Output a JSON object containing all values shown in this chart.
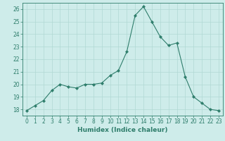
{
  "x": [
    0,
    1,
    2,
    3,
    4,
    5,
    6,
    7,
    8,
    9,
    10,
    11,
    12,
    13,
    14,
    15,
    16,
    17,
    18,
    19,
    20,
    21,
    22,
    23
  ],
  "y": [
    17.9,
    18.3,
    18.7,
    19.5,
    20.0,
    19.8,
    19.7,
    20.0,
    20.0,
    20.1,
    20.7,
    21.1,
    22.6,
    25.5,
    26.2,
    25.0,
    23.8,
    23.1,
    23.3,
    20.6,
    19.0,
    18.5,
    18.0,
    17.9
  ],
  "line_color": "#2e7d6b",
  "marker": "D",
  "marker_size": 2.2,
  "bg_color": "#ceecea",
  "grid_color": "#b0d8d4",
  "axis_color": "#2e7d6b",
  "xlabel": "Humidex (Indice chaleur)",
  "xlabel_fontsize": 6.5,
  "xlim": [
    -0.5,
    23.5
  ],
  "ylim": [
    17.5,
    26.5
  ],
  "yticks": [
    18,
    19,
    20,
    21,
    22,
    23,
    24,
    25,
    26
  ],
  "xticks": [
    0,
    1,
    2,
    3,
    4,
    5,
    6,
    7,
    8,
    9,
    10,
    11,
    12,
    13,
    14,
    15,
    16,
    17,
    18,
    19,
    20,
    21,
    22,
    23
  ],
  "tick_fontsize": 5.5,
  "title": ""
}
